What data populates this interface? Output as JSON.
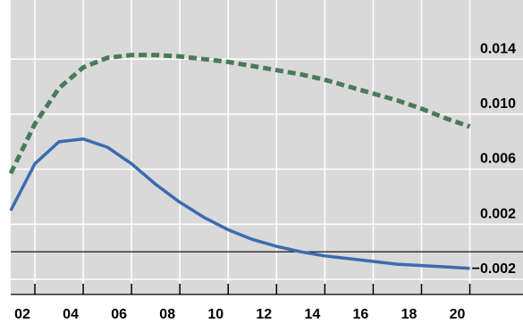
{
  "chart_data": {
    "type": "line",
    "title": "",
    "xlabel": "",
    "ylabel": "",
    "x": [
      1,
      2,
      3,
      4,
      5,
      6,
      7,
      8,
      9,
      10,
      11,
      12,
      13,
      14,
      15,
      16,
      17,
      18,
      19,
      20
    ],
    "xticks": [
      2,
      4,
      6,
      8,
      10,
      12,
      14,
      16,
      18,
      20
    ],
    "xtick_labels": [
      "02",
      "04",
      "06",
      "08",
      "10",
      "12",
      "14",
      "16",
      "18",
      "20"
    ],
    "xlim": [
      1,
      22.2
    ],
    "yticks": [
      -0.002,
      0.002,
      0.006,
      0.01,
      0.014
    ],
    "ytick_labels": [
      "−0.002",
      "0.002",
      "0.006",
      "0.010",
      "0.014"
    ],
    "ylim": [
      -0.0031,
      0.0183
    ],
    "zero_line": 0,
    "grid": true,
    "y_axis_side": "right",
    "background": "#d9d9d9",
    "series": [
      {
        "style": "dashed",
        "color": "#4a7a5a",
        "values": [
          0.0057,
          0.0093,
          0.0119,
          0.0134,
          0.0141,
          0.0143,
          0.0143,
          0.0142,
          0.014,
          0.0138,
          0.0135,
          0.0132,
          0.0129,
          0.0125,
          0.012,
          0.0115,
          0.011,
          0.0104,
          0.0097,
          0.0091
        ]
      },
      {
        "style": "solid",
        "color": "#3d6bb0",
        "values": [
          0.003,
          0.0064,
          0.008,
          0.0082,
          0.0076,
          0.0064,
          0.0049,
          0.0036,
          0.0025,
          0.0016,
          0.0009,
          0.0004,
          0.0,
          -0.0003,
          -0.0005,
          -0.0007,
          -0.0009,
          -0.001,
          -0.0011,
          -0.0012
        ]
      }
    ]
  }
}
